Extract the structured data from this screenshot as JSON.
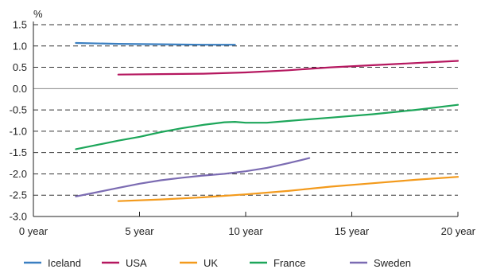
{
  "chart_data": {
    "type": "line",
    "title": "",
    "xlabel": "",
    "ylabel": "%",
    "xlim": [
      0,
      20
    ],
    "ylim": [
      -3.0,
      1.5
    ],
    "x_ticks": [
      0,
      5,
      10,
      15,
      20
    ],
    "x_tick_labels": [
      "0 year",
      "5 year",
      "10 year",
      "15 year",
      "20 year"
    ],
    "y_ticks": [
      1.5,
      1.0,
      0.5,
      0.0,
      -0.5,
      -1.0,
      -1.5,
      -2.0,
      -2.5,
      -3.0
    ],
    "y_tick_labels": [
      "1.5",
      "1.0",
      "0.5",
      "0.0",
      "-0.5",
      "-1.0",
      "-1.5",
      "-2.0",
      "-2.5",
      "-3.0"
    ],
    "grid": "horizontal dashed",
    "legend_position": "bottom",
    "series": [
      {
        "name": "Iceland",
        "color": "#3a7fc1",
        "points": [
          [
            2,
            1.07
          ],
          [
            4,
            1.05
          ],
          [
            6,
            1.04
          ],
          [
            8,
            1.03
          ],
          [
            9.5,
            1.03
          ]
        ]
      },
      {
        "name": "USA",
        "color": "#b5175f",
        "points": [
          [
            4,
            0.33
          ],
          [
            6,
            0.34
          ],
          [
            8,
            0.35
          ],
          [
            10,
            0.38
          ],
          [
            12,
            0.43
          ],
          [
            14,
            0.5
          ],
          [
            16,
            0.55
          ],
          [
            18,
            0.6
          ],
          [
            20,
            0.65
          ]
        ]
      },
      {
        "name": "UK",
        "color": "#f39a1c",
        "points": [
          [
            4,
            -2.64
          ],
          [
            6,
            -2.6
          ],
          [
            8,
            -2.55
          ],
          [
            10,
            -2.48
          ],
          [
            12,
            -2.4
          ],
          [
            14,
            -2.3
          ],
          [
            16,
            -2.22
          ],
          [
            18,
            -2.14
          ],
          [
            20,
            -2.07
          ]
        ]
      },
      {
        "name": "France",
        "color": "#1da65a",
        "points": [
          [
            2,
            -1.42
          ],
          [
            4,
            -1.22
          ],
          [
            5,
            -1.13
          ],
          [
            6,
            -1.02
          ],
          [
            7,
            -0.93
          ],
          [
            8,
            -0.85
          ],
          [
            9,
            -0.79
          ],
          [
            9.5,
            -0.78
          ],
          [
            10,
            -0.8
          ],
          [
            11,
            -0.8
          ],
          [
            12,
            -0.76
          ],
          [
            14,
            -0.68
          ],
          [
            16,
            -0.6
          ],
          [
            18,
            -0.5
          ],
          [
            20,
            -0.38
          ]
        ]
      },
      {
        "name": "Sweden",
        "color": "#7b6bb2",
        "points": [
          [
            2,
            -2.53
          ],
          [
            3,
            -2.43
          ],
          [
            4,
            -2.33
          ],
          [
            5,
            -2.23
          ],
          [
            6,
            -2.15
          ],
          [
            7,
            -2.09
          ],
          [
            8,
            -2.04
          ],
          [
            9,
            -2.0
          ],
          [
            10,
            -1.94
          ],
          [
            11,
            -1.86
          ],
          [
            12,
            -1.75
          ],
          [
            13,
            -1.63
          ]
        ]
      }
    ]
  }
}
